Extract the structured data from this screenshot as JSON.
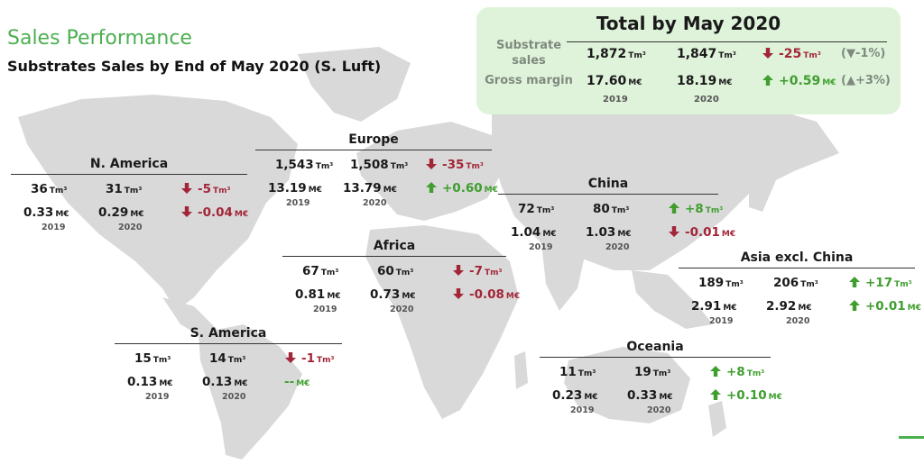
{
  "title": "Sales Performance",
  "subtitle": "Substrates Sales by End of May 2020 (S. Luft)",
  "units": {
    "volume": "Tm³",
    "money": "M€"
  },
  "years": [
    "2019",
    "2020"
  ],
  "colors": {
    "title": "#4caf50",
    "up": "#3f9e2e",
    "down": "#a32638",
    "map": "#d9d9d9",
    "totals_bg": "#dff3da"
  },
  "totals": {
    "title": "Total by May 2020",
    "rows": [
      {
        "label_lines": [
          "Substrate",
          "sales"
        ],
        "v2019": "1,872",
        "v2020": "1,847",
        "delta": "-25",
        "direction": "down",
        "pct": "(▼-1%)",
        "unit": "Tm³"
      },
      {
        "label_lines": [
          "Gross margin"
        ],
        "v2019": "17.60",
        "v2020": "18.19",
        "delta": "+0.59",
        "direction": "up",
        "pct": "(▲+3%)",
        "unit": "M€"
      }
    ]
  },
  "regions": [
    {
      "id": "n-america",
      "name": "N. America",
      "volume": {
        "v2019": "36",
        "v2020": "31",
        "delta": "-5",
        "direction": "down"
      },
      "margin": {
        "v2019": "0.33",
        "v2020": "0.29",
        "delta": "-0.04",
        "direction": "down"
      }
    },
    {
      "id": "europe",
      "name": "Europe",
      "volume": {
        "v2019": "1,543",
        "v2020": "1,508",
        "delta": "-35",
        "direction": "down"
      },
      "margin": {
        "v2019": "13.19",
        "v2020": "13.79",
        "delta": "+0.60",
        "direction": "up"
      }
    },
    {
      "id": "china",
      "name": "China",
      "volume": {
        "v2019": "72",
        "v2020": "80",
        "delta": "+8",
        "direction": "up"
      },
      "margin": {
        "v2019": "1.04",
        "v2020": "1.03",
        "delta": "-0.01",
        "direction": "down"
      }
    },
    {
      "id": "africa",
      "name": "Africa",
      "volume": {
        "v2019": "67",
        "v2020": "60",
        "delta": "-7",
        "direction": "down"
      },
      "margin": {
        "v2019": "0.81",
        "v2020": "0.73",
        "delta": "-0.08",
        "direction": "down"
      }
    },
    {
      "id": "asia",
      "name": "Asia excl. China",
      "volume": {
        "v2019": "189",
        "v2020": "206",
        "delta": "+17",
        "direction": "up"
      },
      "margin": {
        "v2019": "2.91",
        "v2020": "2.92",
        "delta": "+0.01",
        "direction": "up"
      }
    },
    {
      "id": "s-america",
      "name": "S. America",
      "volume": {
        "v2019": "15",
        "v2020": "14",
        "delta": "-1",
        "direction": "down"
      },
      "margin": {
        "v2019": "0.13",
        "v2020": "0.13",
        "delta": "--",
        "direction": "none"
      }
    },
    {
      "id": "oceania",
      "name": "Oceania",
      "volume": {
        "v2019": "11",
        "v2020": "19",
        "delta": "+8",
        "direction": "up"
      },
      "margin": {
        "v2019": "0.23",
        "v2020": "0.33",
        "delta": "+0.10",
        "direction": "up"
      }
    }
  ]
}
